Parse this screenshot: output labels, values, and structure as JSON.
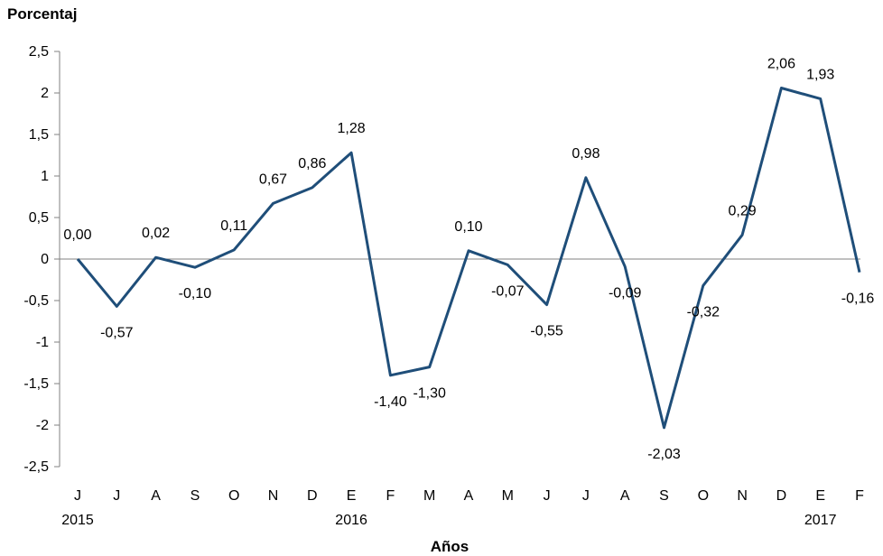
{
  "chart_data": {
    "type": "line",
    "title": "",
    "ylabel": "Porcentaj",
    "xlabel": "Años",
    "ylim": [
      -2.5,
      2.5
    ],
    "yticks": [
      "2,5",
      "2",
      "1,5",
      "1",
      "0,5",
      "0",
      "-0,5",
      "-1",
      "-1,5",
      "-2",
      "-2,5"
    ],
    "ytick_values": [
      2.5,
      2,
      1.5,
      1,
      0.5,
      0,
      -0.5,
      -1,
      -1.5,
      -2,
      -2.5
    ],
    "categories": [
      "J",
      "J",
      "A",
      "S",
      "O",
      "N",
      "D",
      "E",
      "F",
      "M",
      "A",
      "M",
      "J",
      "J",
      "A",
      "S",
      "O",
      "N",
      "D",
      "E",
      "F"
    ],
    "years": [
      {
        "label": "2015",
        "index": 0
      },
      {
        "label": "2016",
        "index": 7
      },
      {
        "label": "2017",
        "index": 19
      }
    ],
    "values": [
      0.0,
      -0.57,
      0.02,
      -0.1,
      0.11,
      0.67,
      0.86,
      1.28,
      -1.4,
      -1.3,
      0.1,
      -0.07,
      -0.55,
      0.98,
      -0.09,
      -2.03,
      -0.32,
      0.29,
      2.06,
      1.93,
      -0.16
    ],
    "data_labels": [
      "0,00",
      "-0,57",
      "0,02",
      "-0,10",
      "0,11",
      "0,67",
      "0,86",
      "1,28",
      "-1,40",
      "-1,30",
      "0,10",
      "-0,07",
      "-0,55",
      "0,98",
      "-0,09",
      "-2,03",
      "-0,32",
      "0,29",
      "2,06",
      "1,93",
      "-0,16"
    ],
    "line_color": "#1f4e79",
    "grid": false,
    "legend": "none"
  }
}
